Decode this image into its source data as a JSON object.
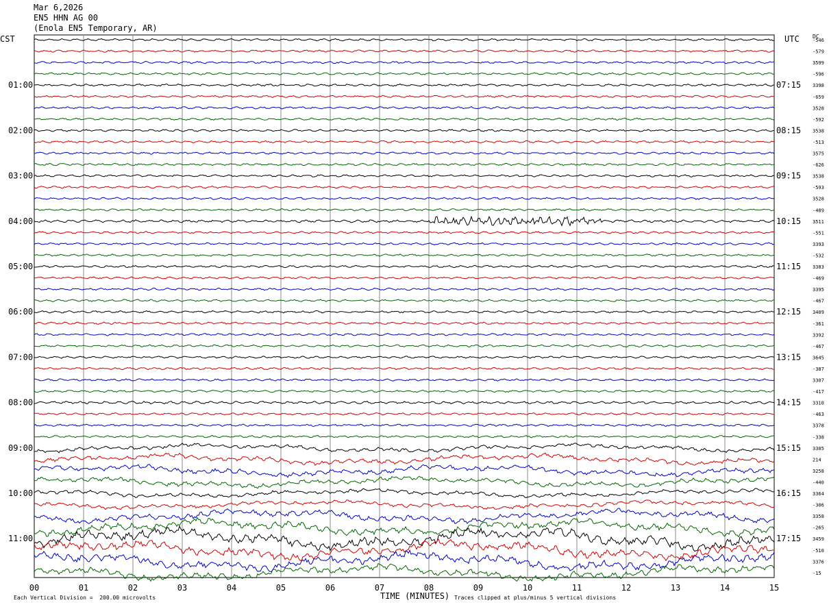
{
  "header": {
    "date": "Mar 6,2026",
    "station": "EN5 HHN AG 00",
    "location": "(Enola EN5 Temporary, AR)"
  },
  "left_tz": "CST",
  "right_tz": "UTC",
  "dc_label": "DC",
  "xlabel": "TIME (MINUTES)",
  "footer_scale": "Each Vertical Division =  200.00 microvolts",
  "footer_clip": "Traces clipped at plus/minus 5 vertical divisions",
  "colors": {
    "trace": [
      "#000000",
      "#d40000",
      "#0000cc",
      "#006600"
    ],
    "grid": "#888888"
  },
  "chart_data": {
    "type": "line",
    "title": "EN5 HHN AG 00",
    "x": [
      "00",
      "01",
      "02",
      "03",
      "04",
      "05",
      "06",
      "07",
      "08",
      "09",
      "10",
      "11",
      "12",
      "13",
      "14",
      "15"
    ],
    "xlim": [
      0,
      15
    ],
    "trace_count": 48,
    "hour_labels_left": [
      "01:00",
      "02:00",
      "03:00",
      "04:00",
      "05:00",
      "06:00",
      "07:00",
      "08:00",
      "09:00",
      "10:00",
      "11:00"
    ],
    "hour_labels_right": [
      "07:15",
      "08:15",
      "09:15",
      "10:15",
      "11:15",
      "12:15",
      "13:15",
      "14:15",
      "15:15",
      "16:15",
      "17:15"
    ],
    "dc_offsets": [
      "-546",
      "-579",
      "3599",
      "-596",
      "3398",
      "-659",
      "3528",
      "-592",
      "3538",
      "-513",
      "3575",
      "-626",
      "3538",
      "-593",
      "3528",
      "-489",
      "3511",
      "-551",
      "3393",
      "-532",
      "3383",
      "-469",
      "3395",
      "-467",
      "3409",
      "-361",
      "3392",
      "-467",
      "3645",
      "-387",
      "3307",
      "-417",
      "3310",
      "-463",
      "3378",
      "-338",
      "3305",
      "214",
      "3258",
      "-440",
      "3364",
      "-306",
      "3358",
      "-265",
      "3459",
      "-510",
      "3376",
      "-15"
    ],
    "amplitude": [
      1,
      1,
      1,
      1,
      1,
      1,
      1,
      1,
      1,
      1,
      1,
      1,
      1,
      1,
      1,
      1,
      1.2,
      1,
      1,
      1,
      1,
      1,
      1,
      1,
      1,
      1,
      1,
      1,
      1,
      1,
      1,
      1,
      1.2,
      1,
      1,
      1,
      1.6,
      2,
      2.2,
      2,
      1.6,
      1.6,
      2.5,
      3,
      4,
      3.5,
      3.5,
      3
    ]
  }
}
